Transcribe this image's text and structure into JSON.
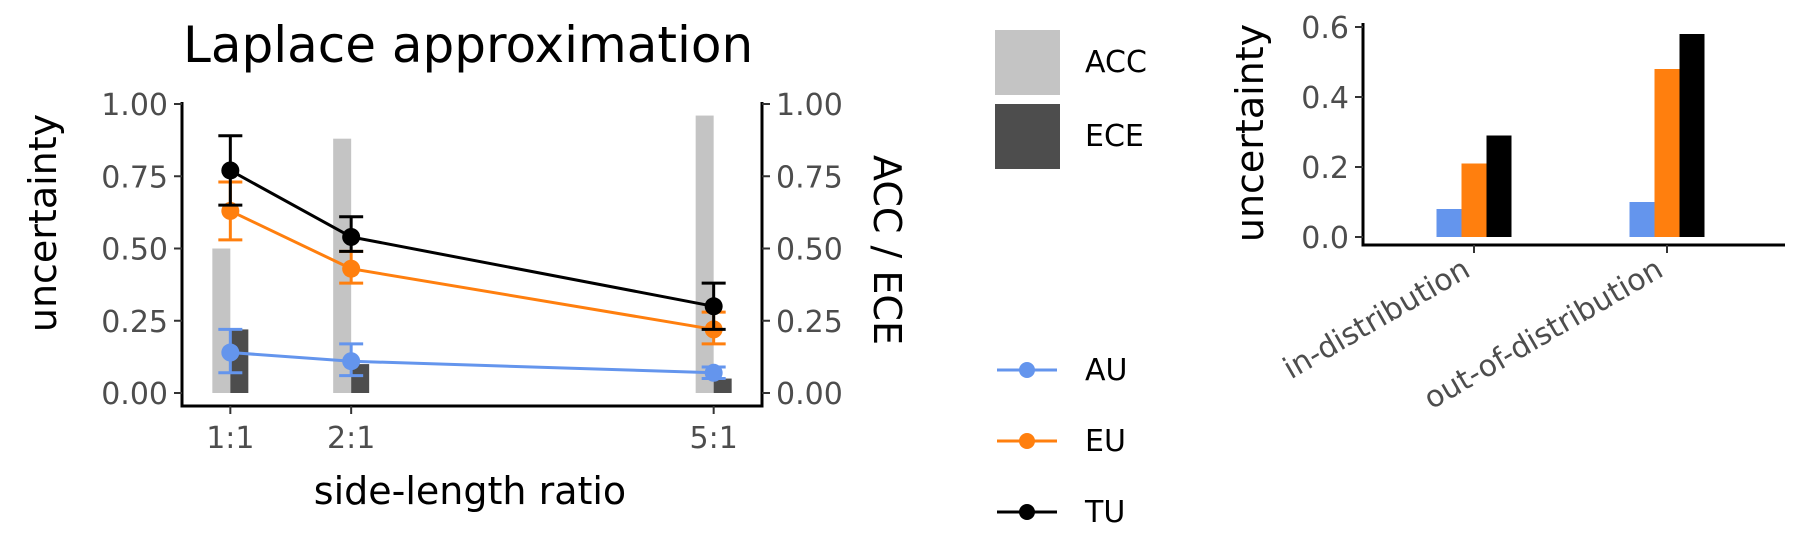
{
  "chart_data": [
    {
      "type": "line",
      "title": "Laplace approximation",
      "xlabel": "side-length ratio",
      "ylabel": "uncertainty",
      "y2label": "ACC / ECE",
      "categories": [
        "1:1",
        "2:1",
        "5:1"
      ],
      "x": [
        1,
        2,
        5
      ],
      "ylim": [
        0,
        1
      ],
      "y2lim": [
        0,
        1
      ],
      "yticks": [
        "0.00",
        "0.25",
        "0.50",
        "0.75",
        "1.00"
      ],
      "y2ticks": [
        "0.00",
        "0.25",
        "0.50",
        "0.75",
        "1.00"
      ],
      "grid": false,
      "series": [
        {
          "name": "AU",
          "color": "#6495ED",
          "values": [
            0.14,
            0.11,
            0.07
          ],
          "err_low": [
            0.07,
            0.06,
            0.05
          ],
          "err_high": [
            0.22,
            0.17,
            0.09
          ]
        },
        {
          "name": "EU",
          "color": "#FF7F0E",
          "values": [
            0.63,
            0.43,
            0.22
          ],
          "err_low": [
            0.53,
            0.38,
            0.17
          ],
          "err_high": [
            0.73,
            0.49,
            0.28
          ]
        },
        {
          "name": "TU",
          "color": "#000000",
          "values": [
            0.77,
            0.54,
            0.3
          ],
          "err_low": [
            0.65,
            0.49,
            0.22
          ],
          "err_high": [
            0.89,
            0.61,
            0.38
          ]
        }
      ],
      "bars": [
        {
          "name": "ACC",
          "color": "#C4C4C4",
          "values": [
            0.5,
            0.88,
            0.96
          ]
        },
        {
          "name": "ECE",
          "color": "#4D4D4D",
          "values": [
            0.22,
            0.1,
            0.05
          ]
        }
      ]
    },
    {
      "type": "bar",
      "ylabel": "uncertainty",
      "categories": [
        "in-distribution",
        "out-of-distribution"
      ],
      "ylim": [
        0,
        0.6
      ],
      "yticks": [
        "0.0",
        "0.2",
        "0.4",
        "0.6"
      ],
      "grid": false,
      "series": [
        {
          "name": "AU",
          "color": "#6495ED",
          "values": [
            0.08,
            0.1
          ]
        },
        {
          "name": "EU",
          "color": "#FF7F0E",
          "values": [
            0.21,
            0.48
          ]
        },
        {
          "name": "TU",
          "color": "#000000",
          "values": [
            0.29,
            0.58
          ]
        }
      ]
    }
  ],
  "legend": {
    "bars": [
      {
        "label": "ACC",
        "color": "#C4C4C4"
      },
      {
        "label": "ECE",
        "color": "#4D4D4D"
      }
    ],
    "lines": [
      {
        "label": "AU",
        "color": "#6495ED"
      },
      {
        "label": "EU",
        "color": "#FF7F0E"
      },
      {
        "label": "TU",
        "color": "#000000"
      }
    ]
  }
}
